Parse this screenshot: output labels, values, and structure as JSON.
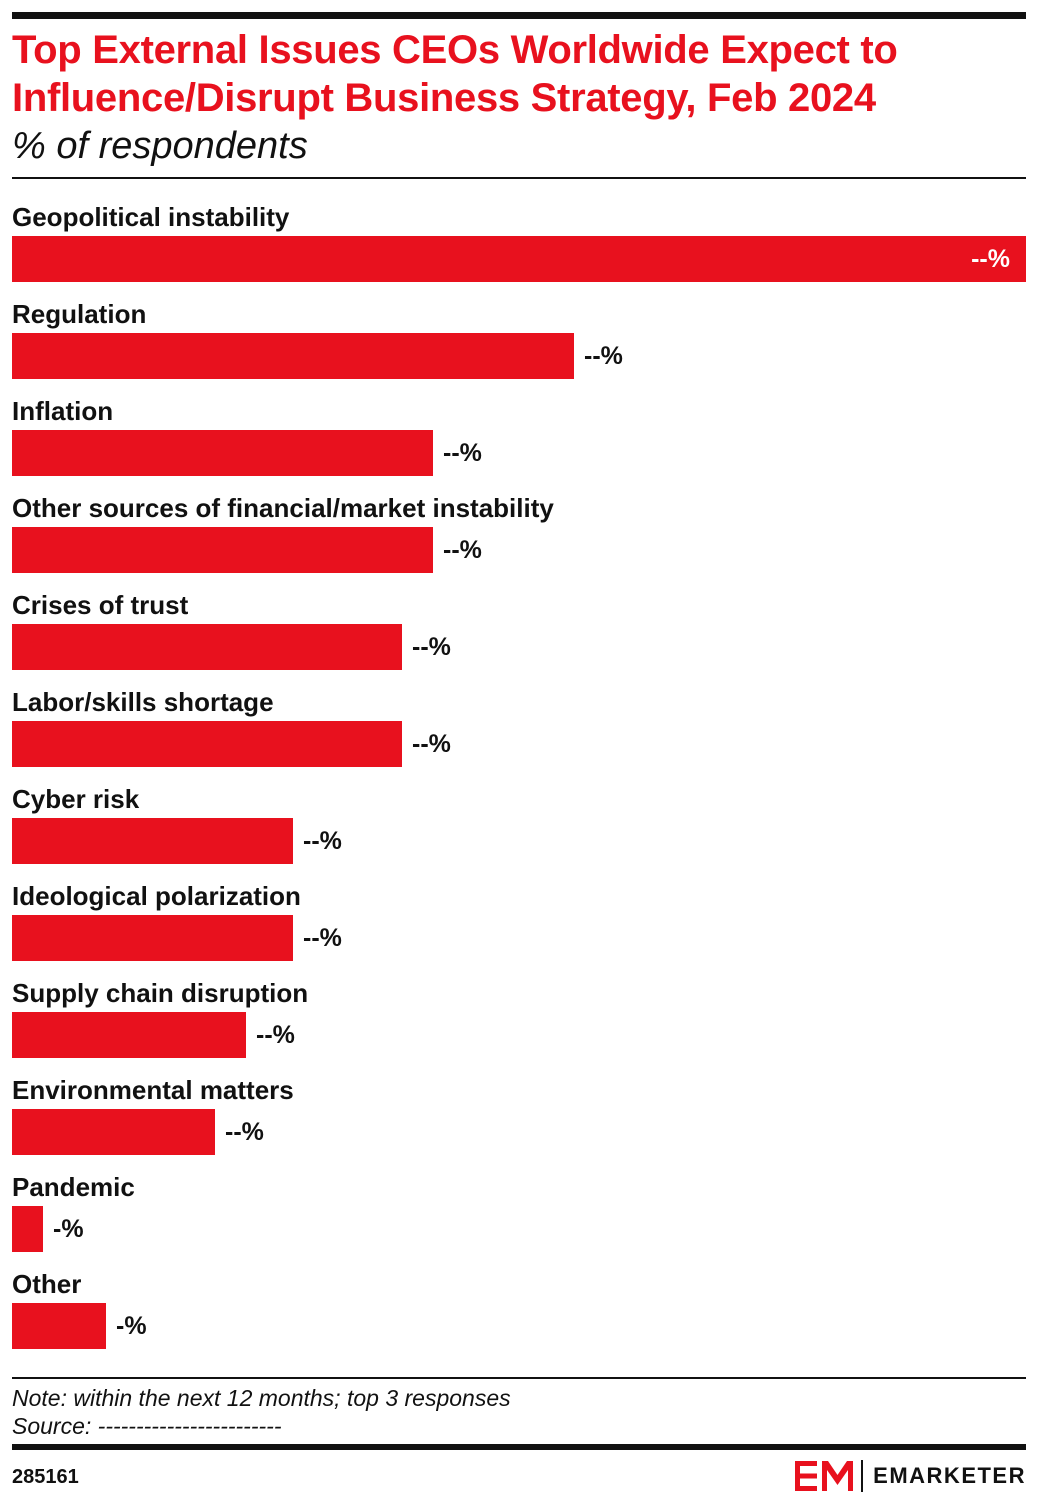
{
  "header": {
    "title": "Top External Issues CEOs Worldwide Expect to Influence/Disrupt Business Strategy, Feb 2024",
    "subtitle": "% of respondents"
  },
  "chart_data": {
    "type": "bar",
    "orientation": "horizontal",
    "categories": [
      "Geopolitical instability",
      "Regulation",
      "Inflation",
      "Other sources of financial/market instability",
      "Crises of trust",
      "Labor/skills shortage",
      "Cyber risk",
      "Ideological polarization",
      "Supply chain disruption",
      "Environmental matters",
      "Pandemic",
      "Other"
    ],
    "values": [
      65,
      36,
      27,
      27,
      25,
      25,
      18,
      18,
      15,
      13,
      2,
      6
    ],
    "value_labels": [
      "--%",
      "--%",
      "--%",
      "--%",
      "--%",
      "--%",
      "--%",
      "--%",
      "--%",
      "--%",
      "-%",
      "-%"
    ],
    "xlim": [
      0,
      65
    ],
    "grid": false,
    "legend": "none",
    "bar_color": "#e8111e"
  },
  "footer": {
    "note": "Note: within the next 12 months; top 3 responses",
    "source": "Source: ------------------------",
    "chart_id": "285161",
    "brand": "EMARKETER"
  }
}
